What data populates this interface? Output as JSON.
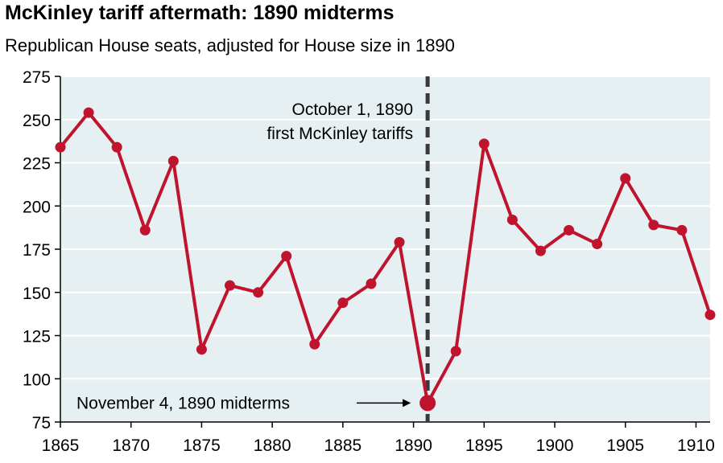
{
  "chart_data": {
    "type": "line",
    "title": "McKinley tariff aftermath: 1890 midterms",
    "subtitle": "Republican House seats, adjusted for House size in 1890",
    "xlabel": "",
    "ylabel": "",
    "xlim": [
      1865,
      1911
    ],
    "ylim": [
      75,
      275
    ],
    "x_ticks": [
      1865,
      1870,
      1875,
      1880,
      1885,
      1890,
      1895,
      1900,
      1905,
      1910
    ],
    "y_ticks": [
      75,
      100,
      125,
      150,
      175,
      200,
      225,
      250,
      275
    ],
    "grid": true,
    "series": [
      {
        "name": "Republican House seats",
        "color": "#c0142e",
        "x": [
          1865,
          1867,
          1869,
          1871,
          1873,
          1875,
          1877,
          1879,
          1881,
          1883,
          1885,
          1887,
          1889,
          1891,
          1893,
          1895,
          1897,
          1899,
          1901,
          1903,
          1905,
          1907,
          1909,
          1911
        ],
        "y": [
          234,
          254,
          234,
          186,
          226,
          117,
          154,
          150,
          171,
          120,
          144,
          155,
          179,
          86,
          116,
          236,
          192,
          174,
          186,
          178,
          216,
          189,
          186,
          137
        ]
      }
    ],
    "highlight_point": {
      "x": 1891,
      "y": 86
    },
    "vertical_marker": {
      "x": 1891
    },
    "annotations": [
      {
        "text_lines": [
          "October 1, 1890",
          "first McKinley tariffs"
        ]
      },
      {
        "text": "November 4, 1890 midterms"
      }
    ]
  },
  "colors": {
    "plot_background": "#e6eff2",
    "grid": "#ffffff",
    "line": "#c0142e",
    "marker_line": "#3a3a3a"
  }
}
